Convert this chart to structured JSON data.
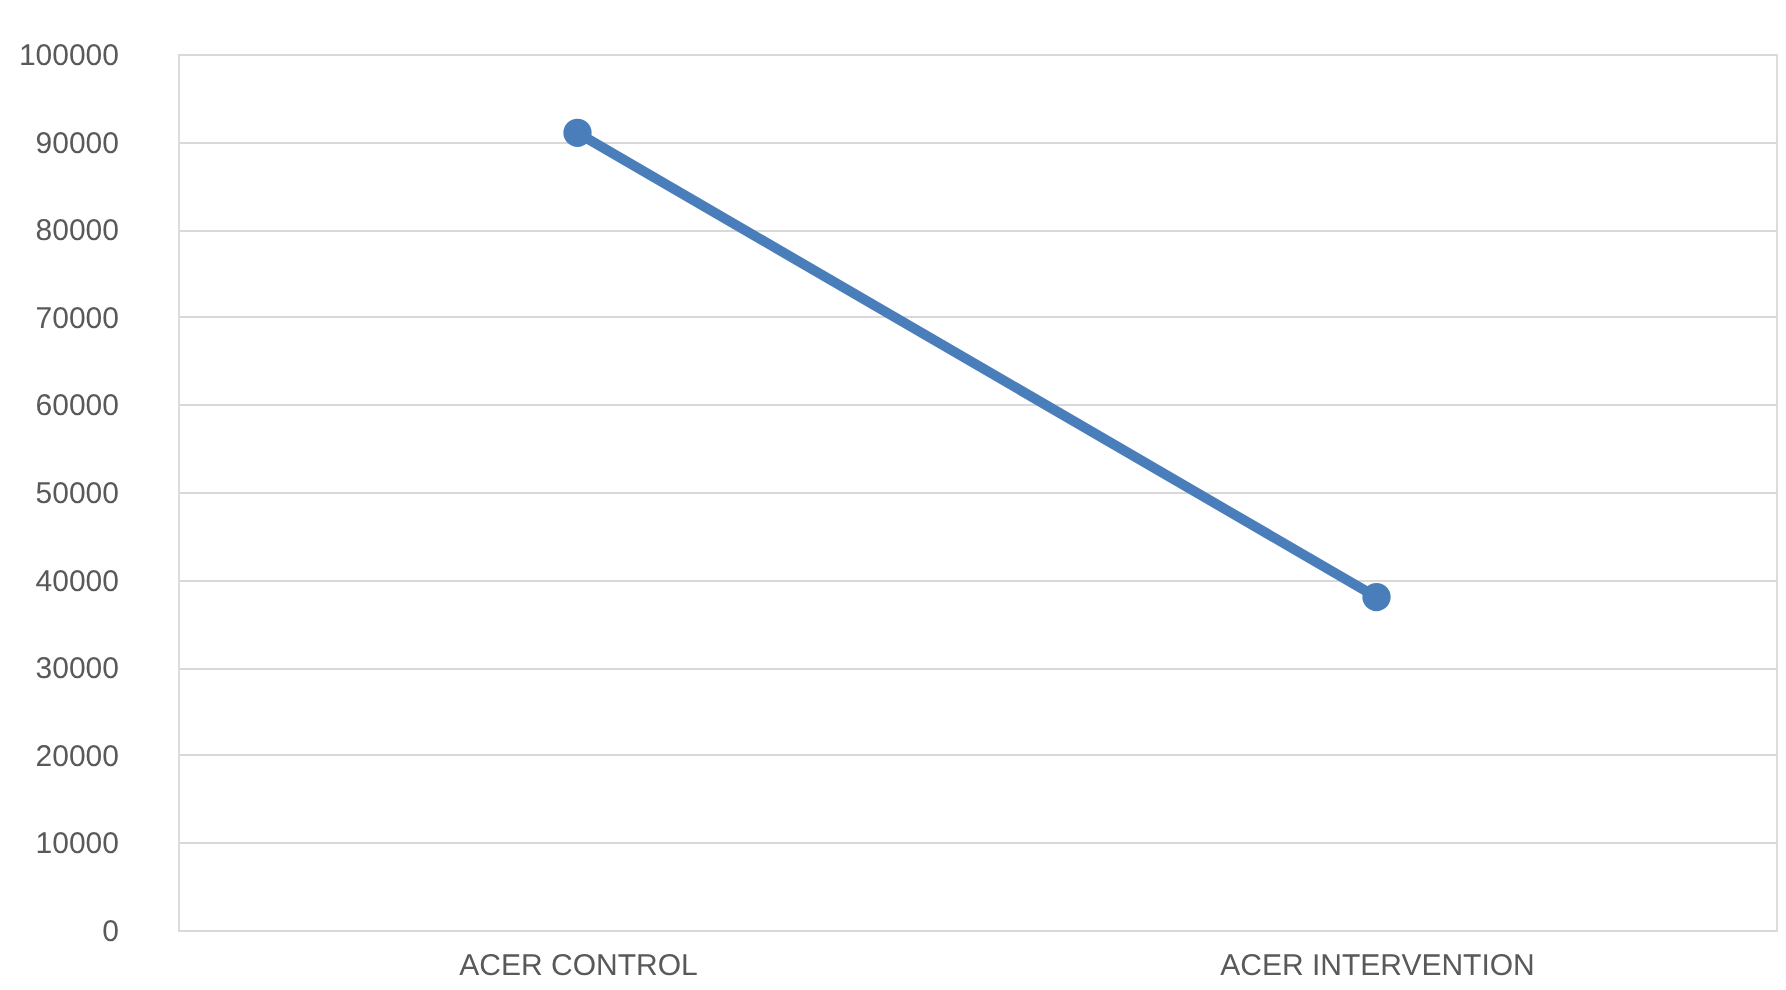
{
  "chart_data": {
    "type": "line",
    "categories": [
      "ACER CONTROL",
      "ACER INTERVENTION"
    ],
    "series": [
      {
        "color": "#4a7ebb",
        "values": [
          91000,
          38000
        ]
      }
    ],
    "ylim": [
      0,
      100000
    ],
    "yticks": [
      0,
      10000,
      20000,
      30000,
      40000,
      50000,
      60000,
      70000,
      80000,
      90000,
      100000
    ],
    "grid": "y",
    "marker": "circle"
  }
}
